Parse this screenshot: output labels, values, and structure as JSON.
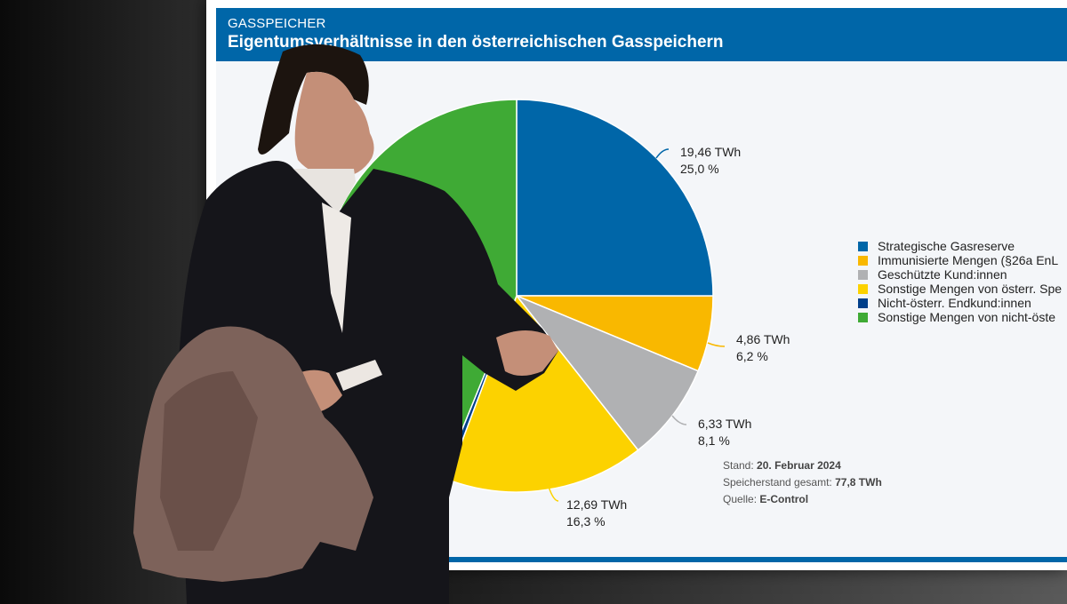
{
  "header": {
    "kicker": "GASSPEICHER",
    "title": "Eigentumsverhältnisse in den österreichischen Gasspeichern"
  },
  "chart_data": {
    "type": "pie",
    "title": "Eigentumsverhältnisse in den österreichischen Gasspeichern",
    "slices": [
      {
        "name": "Strategische Gasreserve",
        "value": 19.46,
        "value_label": "19,46 TWh",
        "percent_label": "25,0 %",
        "color": "#0066a8"
      },
      {
        "name": "Immunisierte Mengen (§26a EnL",
        "value": 4.86,
        "value_label": "4,86 TWh",
        "percent_label": "6,2 %",
        "color": "#f9b800"
      },
      {
        "name": "Geschützte Kund:innen",
        "value": 6.33,
        "value_label": "6,33 TWh",
        "percent_label": "8,1 %",
        "color": "#b0b1b3"
      },
      {
        "name": "Sonstige Mengen von österr. Spe",
        "value": 12.69,
        "value_label": "12,69 TWh",
        "percent_label": "16,3 %",
        "color": "#fcd200"
      },
      {
        "name": "Nicht-österr. Endkund:innen",
        "value": 0.35,
        "value_label": "",
        "percent_label": "",
        "color": "#003f8a"
      },
      {
        "name": "Sonstige Mengen von nicht-öste",
        "value": 34.11,
        "value_label": "",
        "percent_label": "",
        "color": "#3faa35"
      }
    ],
    "legend_position": "right"
  },
  "meta": {
    "stand_label": "Stand:",
    "stand_value": "20. Februar 2024",
    "total_label": "Speicherstand gesamt:",
    "total_value": "77,8 TWh",
    "source_label": "Quelle:",
    "source_value": "E-Control"
  }
}
